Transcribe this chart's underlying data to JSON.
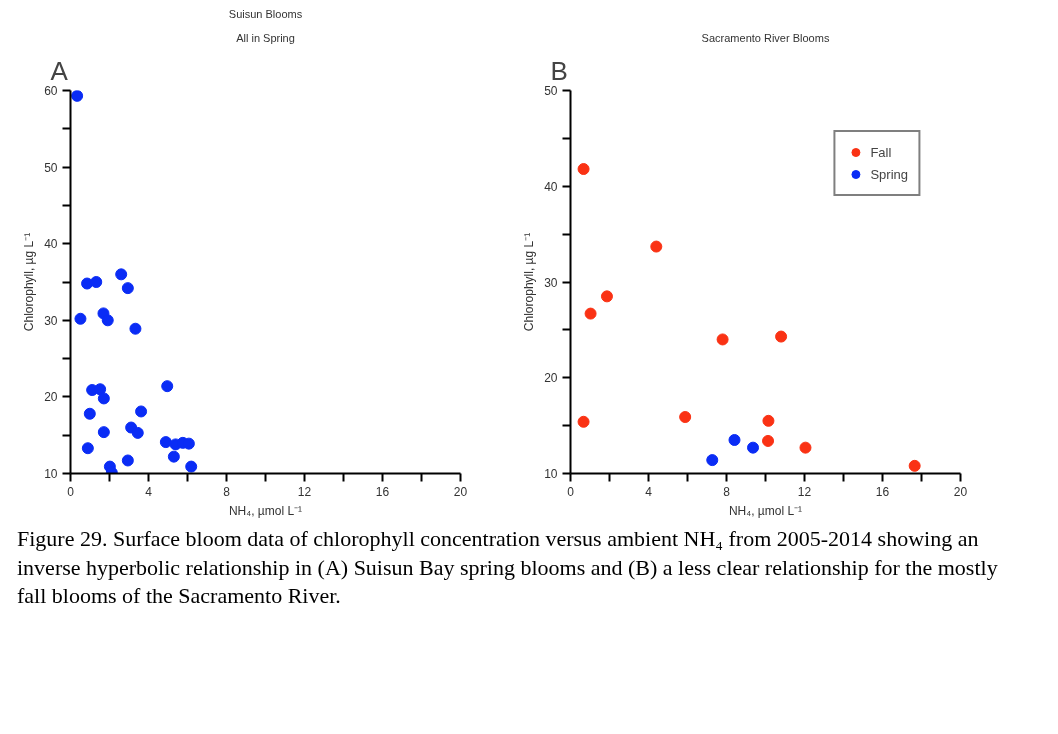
{
  "chart_data": [
    {
      "type": "scatter",
      "title": "Suisun Blooms",
      "subtitle": "All in Spring",
      "annotations": [
        "A"
      ],
      "xlabel": "NH₄, µmol L⁻¹",
      "ylabel": "Chlorophyll, µg L⁻¹",
      "xlim": [
        0,
        20
      ],
      "ylim": [
        10,
        60
      ],
      "xticks": [
        0,
        {
          "value": 2,
          "label": null
        },
        4,
        {
          "value": 6,
          "label": null
        },
        8,
        {
          "value": 10,
          "label": null
        },
        12,
        {
          "value": 14,
          "label": null
        },
        16,
        {
          "value": 18,
          "label": null
        },
        20
      ],
      "yticks": [
        10,
        {
          "value": 15,
          "label": null
        },
        20,
        {
          "value": 25,
          "label": null
        },
        30,
        {
          "value": 35,
          "label": null
        },
        40,
        {
          "value": 45,
          "label": null
        },
        50,
        {
          "value": 55,
          "label": null
        },
        60
      ],
      "grid": false,
      "legend": false,
      "marker": "circle",
      "series": [
        {
          "color": "#0a2cf5",
          "x": [
            0.34,
            0.51,
            0.85,
            1.32,
            2.6,
            2.94,
            1.69,
            1.91,
            3.33,
            1.11,
            1.52,
            1.71,
            0.99,
            3.62,
            4.96,
            1.71,
            0.89,
            3.11,
            3.45,
            2.94,
            2.02,
            2.12,
            4.89,
            5.3,
            5.39,
            5.76,
            6.07,
            6.19
          ],
          "values": [
            59.3,
            30.2,
            34.8,
            35.0,
            36.0,
            34.2,
            30.9,
            30.0,
            28.9,
            20.9,
            21.0,
            19.8,
            17.8,
            18.1,
            21.4,
            15.4,
            13.3,
            16.0,
            15.3,
            11.7,
            10.9,
            10.1,
            14.1,
            12.2,
            13.8,
            14.0,
            13.9,
            10.9
          ]
        }
      ]
    },
    {
      "type": "scatter",
      "title": "Sacramento River Blooms",
      "annotations": [
        "B",
        "Figure 29. Surface bloom data of chlorophyll concentration versus ambient NH₄ from 2005-2014 showing an inverse hyperbolic relationship in (A) Suisun Bay spring blooms and (B) a less clear relationship for the mostly fall blooms of the Sacramento River."
      ],
      "xlabel": "NH₄, µmol L⁻¹",
      "ylabel": "Chlorophyll, µg L⁻¹",
      "xlim": [
        0,
        20
      ],
      "ylim": [
        10,
        50
      ],
      "xticks": [
        0,
        {
          "value": 2,
          "label": null
        },
        4,
        {
          "value": 6,
          "label": null
        },
        8,
        {
          "value": 10,
          "label": null
        },
        12,
        {
          "value": 14,
          "label": null
        },
        16,
        {
          "value": 18,
          "label": null
        },
        20
      ],
      "yticks": [
        10,
        {
          "value": 15,
          "label": null
        },
        20,
        {
          "value": 25,
          "label": null
        },
        30,
        {
          "value": 35,
          "label": null
        },
        40,
        {
          "value": 45,
          "label": null
        },
        50
      ],
      "grid": false,
      "legend": "top right",
      "marker": "circle",
      "series": [
        {
          "name": "Fall",
          "color": "#fa3214",
          "x": [
            0.67,
            1.03,
            1.87,
            4.4,
            0.67,
            5.88,
            7.8,
            10.8,
            10.15,
            10.13,
            12.05,
            17.65
          ],
          "values": [
            41.8,
            26.7,
            28.5,
            33.7,
            15.4,
            15.9,
            24.0,
            24.3,
            15.5,
            13.4,
            12.7,
            10.8
          ]
        },
        {
          "name": "Spring",
          "color": "#0a2cf5",
          "x": [
            7.27,
            8.41,
            9.36
          ],
          "values": [
            11.4,
            13.5,
            12.7
          ]
        }
      ]
    }
  ]
}
